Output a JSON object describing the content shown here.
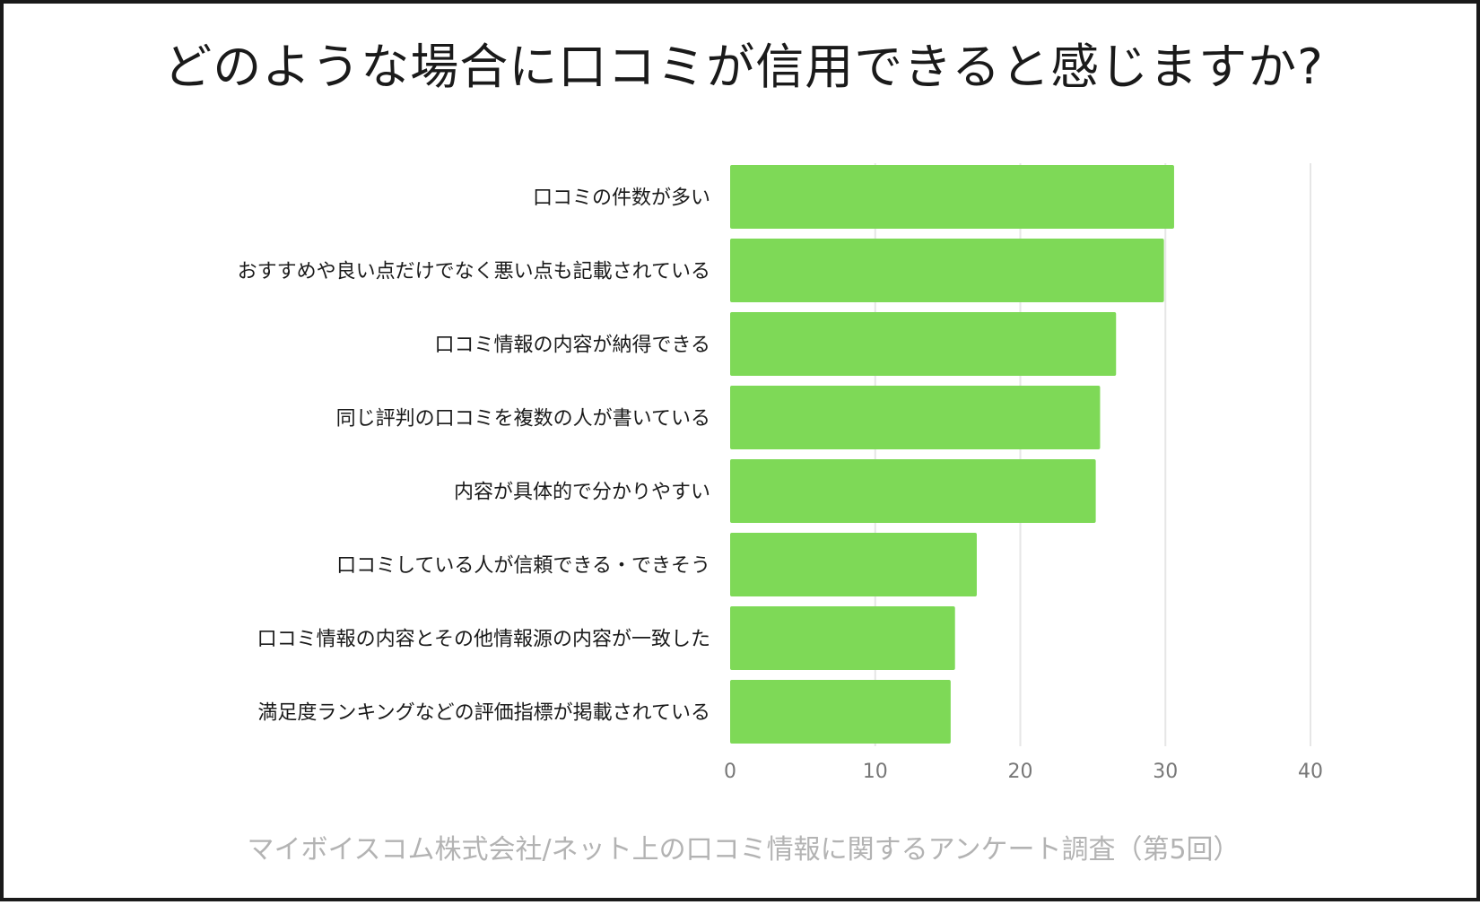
{
  "chart_data": {
    "type": "bar",
    "orientation": "horizontal",
    "title": "どのような場合に口コミが信用できると感じますか?",
    "source": "マイボイスコム株式会社/ネット上の口コミ情報に関するアンケート調査（第5回）",
    "categories": [
      "口コミの件数が多い",
      "おすすめや良い点だけでなく悪い点も記載されている",
      "口コミ情報の内容が納得できる",
      "同じ評判の口コミを複数の人が書いている",
      "内容が具体的で分かりやすい",
      "口コミしている人が信頼できる・できそう",
      "口コミ情報の内容とその他情報源の内容が一致した",
      "満足度ランキングなどの評価指標が掲載されている"
    ],
    "values": [
      30.6,
      29.9,
      26.6,
      25.5,
      25.2,
      17.0,
      15.5,
      15.2
    ],
    "xlim": [
      0,
      40
    ],
    "xticks": [
      "0",
      "10",
      "20",
      "30",
      "40"
    ],
    "grid": true,
    "bar_color": "#7ed957",
    "grid_color": "#e6e6e6"
  }
}
